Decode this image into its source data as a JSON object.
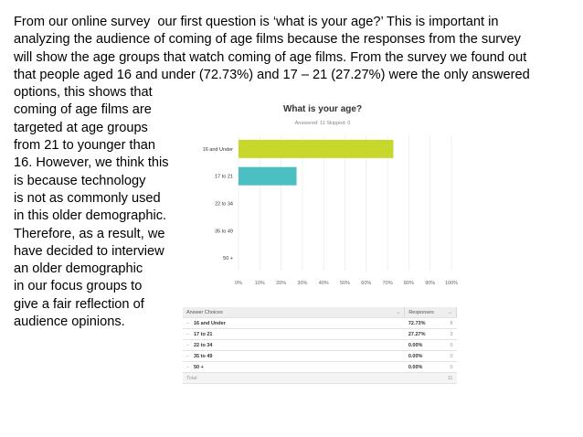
{
  "slide_text": [
    "From our online survey  our first question is ‘what is your age?’ This is important in",
    "analyzing the audience of coming of age films because the responses from the survey",
    "will show the age groups that watch coming of age films. From the survey we found out",
    "that people aged 16 and under (72.73%) and 17 – 21 (27.27%) were the only answered",
    "options, this shows that",
    "coming of age films are",
    "targeted at age groups",
    "from 21 to younger than",
    "16. However, we think this",
    "is because technology",
    "is not as commonly used",
    "in this older demographic.",
    "Therefore, as a result, we",
    "have decided to interview",
    "an older demographic",
    "in our focus groups to",
    "give a fair reflection of",
    "audience opinions."
  ],
  "chart_data": {
    "type": "bar",
    "orientation": "horizontal",
    "title": "What is your age?",
    "subtitle": "Answered: 11    Skipped: 0",
    "categories": [
      "16 and Under",
      "17 to 21",
      "22 to 34",
      "35 to 49",
      "50 +"
    ],
    "values": [
      72.73,
      27.27,
      0,
      0,
      0
    ],
    "bar_colors": [
      "#c8d72c",
      "#4bbfc2",
      "#cccccc",
      "#cccccc",
      "#cccccc"
    ],
    "xlim": [
      0,
      100
    ],
    "xticks": [
      "0%",
      "10%",
      "20%",
      "30%",
      "40%",
      "50%",
      "60%",
      "70%",
      "80%",
      "90%",
      "100%"
    ],
    "grid": true
  },
  "table": {
    "headers": [
      "Answer Choices",
      "Responses"
    ],
    "sort_glyph": "⌄",
    "row_glyph": "–",
    "rows": [
      {
        "choice": "16 and Under",
        "percent": "72.73%",
        "count": "8"
      },
      {
        "choice": "17 to 21",
        "percent": "27.27%",
        "count": "3"
      },
      {
        "choice": "22 to 34",
        "percent": "0.00%",
        "count": "0"
      },
      {
        "choice": "35 to 49",
        "percent": "0.00%",
        "count": "0"
      },
      {
        "choice": "50 +",
        "percent": "0.00%",
        "count": "0"
      }
    ],
    "total_label": "Total",
    "total_value": "11"
  }
}
